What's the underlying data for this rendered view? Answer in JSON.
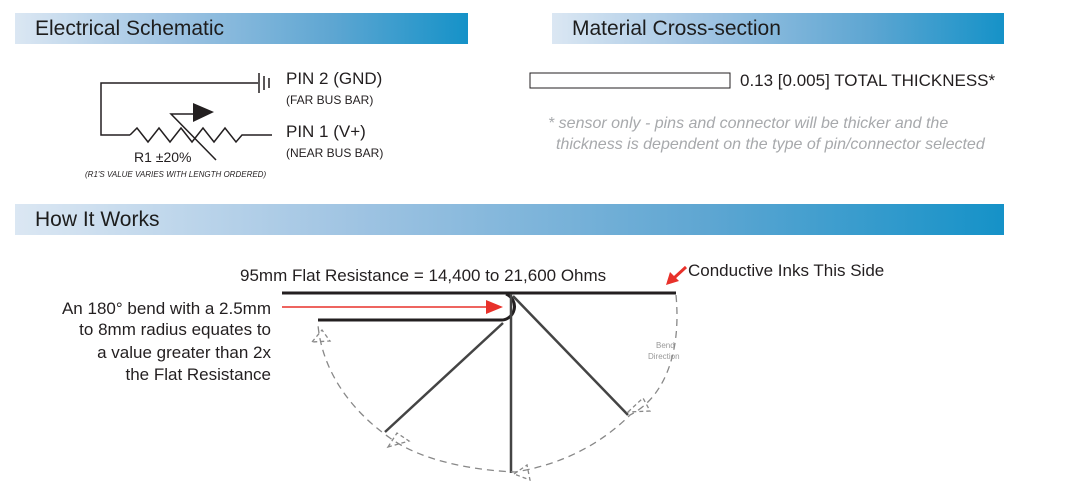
{
  "sections": {
    "electrical": "Electrical Schematic",
    "material": "Material Cross-section",
    "how": "How It Works"
  },
  "schematic": {
    "pin2": "PIN 2 (GND)",
    "pin2_sub": "(FAR BUS BAR)",
    "pin1": "PIN 1 (V+)",
    "pin1_sub": "(NEAR BUS BAR)",
    "r1": "R1 ±20%",
    "r1_note": "(R1'S VALUE VARIES WITH LENGTH ORDERED)"
  },
  "material": {
    "thickness": "0.13 [0.005] TOTAL THICKNESS*",
    "note_line1": "* sensor only - pins and connector will be thicker and the",
    "note_line2": "thickness is dependent on the type of pin/connector selected"
  },
  "how": {
    "flat_resistance": "95mm Flat Resistance = 14,400  to 21,600 Ohms",
    "conductive": "Conductive Inks This Side",
    "bend_lines": [
      "An 180° bend with a 2.5mm",
      "to 8mm radius equates to",
      "a value greater than 2x",
      "the Flat Resistance"
    ],
    "bend_direction_1": "Bend",
    "bend_direction_2": "Direction"
  },
  "colors": {
    "accent_red": "#e8312a",
    "bar_end": "#1592c8"
  }
}
